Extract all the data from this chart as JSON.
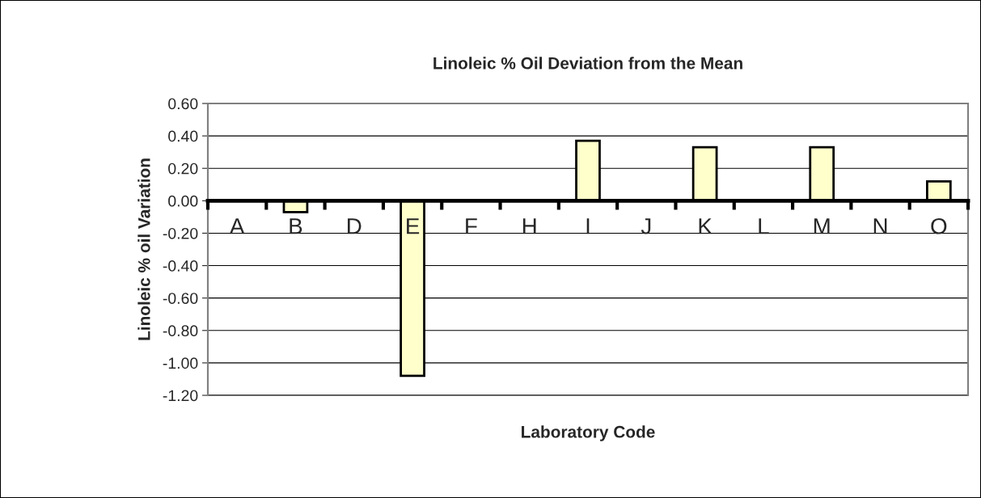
{
  "chart_data": {
    "type": "bar",
    "title": "Linoleic % Oil Deviation from the Mean",
    "xlabel": "Laboratory Code",
    "ylabel": "Linoleic % oil Variation",
    "categories": [
      "A",
      "B",
      "D",
      "E",
      "F",
      "H",
      "I",
      "J",
      "K",
      "L",
      "M",
      "N",
      "O"
    ],
    "values": [
      null,
      -0.07,
      null,
      -1.08,
      null,
      null,
      0.37,
      null,
      0.33,
      null,
      0.33,
      null,
      0.12
    ],
    "color": "#ffffcc",
    "ylim": [
      -1.2,
      0.6
    ],
    "yticks": [
      {
        "value": 0.6,
        "label": "0.60"
      },
      {
        "value": 0.4,
        "label": "0.40"
      },
      {
        "value": 0.2,
        "label": "0.20"
      },
      {
        "value": 0,
        "label": "0.00"
      },
      {
        "value": -0.2,
        "label": "-0.20"
      },
      {
        "value": -0.4,
        "label": "-0.40"
      },
      {
        "value": -0.6,
        "label": "-0.60"
      },
      {
        "value": -0.8,
        "label": "-0.80"
      },
      {
        "value": -1.0,
        "label": "-1.00"
      },
      {
        "value": -1.2,
        "label": "-1.20"
      }
    ],
    "grid": "y"
  }
}
